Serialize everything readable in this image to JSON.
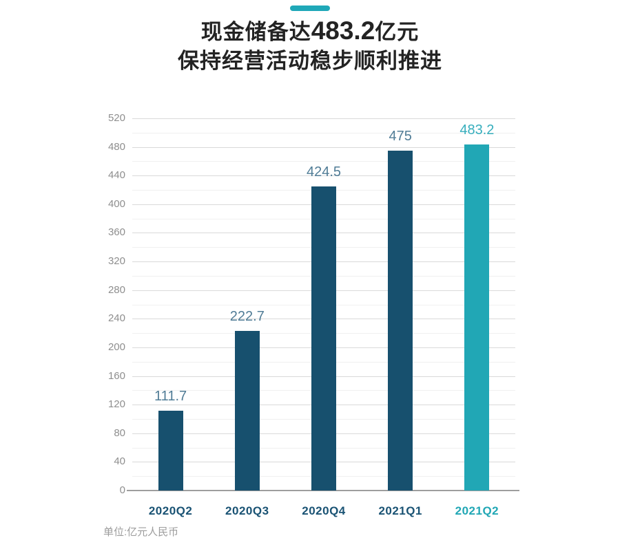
{
  "header": {
    "accent_color": "#1fa8b8",
    "title_prefix": "现金储备达",
    "title_value": "483.2",
    "title_suffix": "亿元",
    "subtitle": "保持经营活动稳步顺利推进"
  },
  "chart_data": {
    "type": "bar",
    "title": "现金储备达483.2亿元",
    "subtitle": "保持经营活动稳步顺利推进",
    "categories": [
      "2020Q2",
      "2020Q3",
      "2020Q4",
      "2021Q1",
      "2021Q2"
    ],
    "values": [
      111.7,
      222.7,
      424.5,
      475,
      483.2
    ],
    "unit": "亿元人民币",
    "xlabel": "",
    "ylabel": "",
    "ylim": [
      0,
      520
    ],
    "y_major_step": 40,
    "y_minor_step": 20,
    "grid": true,
    "legend": false,
    "highlight_index": 4,
    "bar_color": "#17506e",
    "highlight_color": "#21a7b5",
    "colors": {
      "grid_major": "#d9d9d9",
      "grid_minor": "#f0f0f0",
      "axis_line": "#9e9e9e",
      "tick": "#8e8e8e",
      "value_label": "#507c96",
      "value_label_highlight": "#36aebd",
      "category_label": "#1a5374",
      "category_label_highlight": "#21a7b5"
    }
  },
  "footer": {
    "unit_label": "单位:亿元人民币",
    "text_color": "#9c9c9c"
  }
}
